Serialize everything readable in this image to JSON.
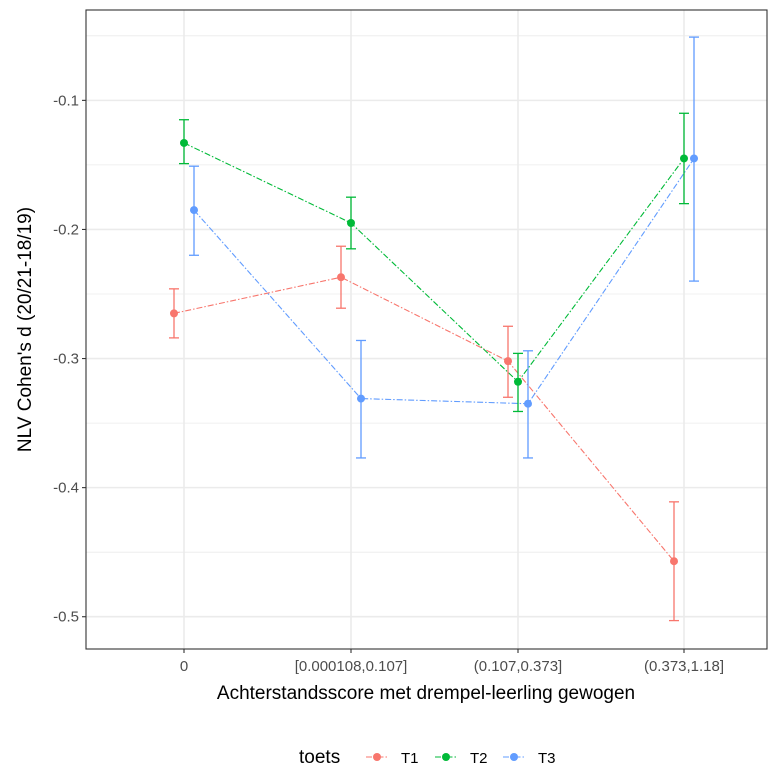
{
  "chart_data": {
    "type": "line",
    "title": "",
    "xlabel": "Achterstandsscore met drempel-leerling gewogen",
    "ylabel": "NLV Cohen's d (20/21-18/19)",
    "categories": [
      "0",
      "[0.000108,0.107]",
      "(0.107,0.373]",
      "(0.373,1.18]"
    ],
    "ylim": [
      -0.525,
      -0.03
    ],
    "yticks": [
      -0.5,
      -0.4,
      -0.3,
      -0.2,
      -0.1
    ],
    "ytick_labels": [
      "-0.5",
      "-0.4",
      "-0.3",
      "-0.2",
      "-0.1"
    ],
    "grid": true,
    "legend": {
      "title": "toets",
      "placement": "bottom"
    },
    "series": [
      {
        "name": "T1",
        "color": "#F8766D",
        "values": [
          -0.265,
          -0.237,
          -0.302,
          -0.457
        ],
        "lower": [
          -0.284,
          -0.261,
          -0.33,
          -0.503
        ],
        "upper": [
          -0.246,
          -0.213,
          -0.275,
          -0.411
        ]
      },
      {
        "name": "T2",
        "color": "#00BA38",
        "values": [
          -0.133,
          -0.195,
          -0.318,
          -0.145
        ],
        "lower": [
          -0.149,
          -0.215,
          -0.341,
          -0.18
        ],
        "upper": [
          -0.115,
          -0.175,
          -0.296,
          -0.11
        ]
      },
      {
        "name": "T3",
        "color": "#619CFF",
        "values": [
          -0.185,
          -0.331,
          -0.335,
          -0.145
        ],
        "lower": [
          -0.22,
          -0.377,
          -0.377,
          -0.24
        ],
        "upper": [
          -0.151,
          -0.286,
          -0.294,
          -0.051
        ]
      }
    ]
  }
}
